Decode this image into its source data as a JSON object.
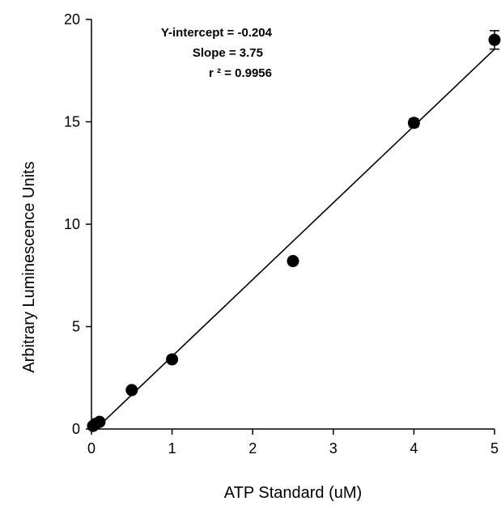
{
  "chart_data": {
    "type": "scatter",
    "xlabel": "ATP Standard (uM)",
    "ylabel": "Arbitrary Luminescence Units",
    "xlim": [
      0,
      5
    ],
    "ylim": [
      0,
      20
    ],
    "x_ticks": [
      "0",
      "1",
      "2",
      "3",
      "4",
      "5"
    ],
    "y_ticks": [
      "0",
      "5",
      "10",
      "15",
      "20"
    ],
    "grid": false,
    "points": [
      {
        "x": 0.02,
        "y": 0.15,
        "err": 0
      },
      {
        "x": 0.05,
        "y": 0.25,
        "err": 0
      },
      {
        "x": 0.1,
        "y": 0.35,
        "err": 0
      },
      {
        "x": 0.5,
        "y": 1.9,
        "err": 0
      },
      {
        "x": 1,
        "y": 3.4,
        "err": 0
      },
      {
        "x": 2.5,
        "y": 8.2,
        "err": 0
      },
      {
        "x": 4,
        "y": 14.95,
        "err": 0.2
      },
      {
        "x": 5,
        "y": 19.0,
        "err": 0.45
      }
    ],
    "fit_line": {
      "intercept": -0.204,
      "slope": 3.75
    },
    "annotations": [
      "Y-intercept = -0.204",
      "Slope = 3.75",
      "r ² = 0.9956"
    ],
    "colors": {
      "marks": "#000000",
      "background": "#ffffff"
    }
  }
}
